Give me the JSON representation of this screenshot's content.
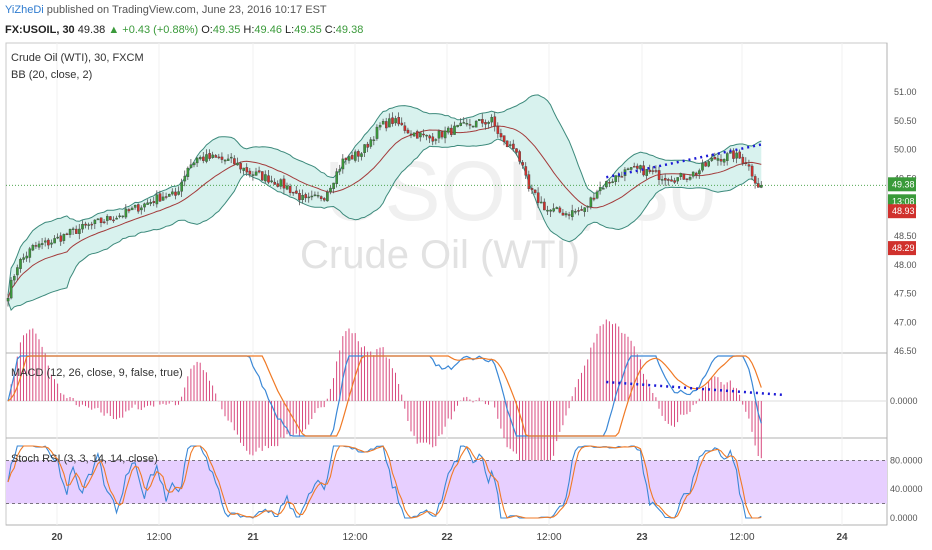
{
  "header": {
    "author": "YiZheDi",
    "published": " published on TradingView.com, June 23, 2016 10:17 EST",
    "symbol": "FX:USOIL, 30",
    "last": "49.38",
    "change": "+0.43 (+0.88%)",
    "open_label": "O:",
    "open": "49.35",
    "high_label": "H:",
    "high": "49.46",
    "low_label": "L:",
    "low": "49.35",
    "close_label": "C:",
    "close": "49.38"
  },
  "main": {
    "title": "Crude Oil (WTI), 30, FXCM",
    "indicator": "BB (20, close, 2)",
    "watermark_symbol": "USOIL, 30",
    "watermark_name": "Crude Oil (WTI)"
  },
  "colors": {
    "up": "#3a9a3a",
    "down": "#d0312d",
    "bb_fill": "#d8f2ee",
    "bb_line": "#3d8a7c",
    "basis": "#a33b3b",
    "macd": "#3b88d6",
    "signal": "#f07a26",
    "hist": "#d84a7e",
    "stoch_k": "#3b88d6",
    "stoch_d": "#f07a26",
    "stoch_band": "#e7cfff",
    "trendline": "#1c1ad6"
  },
  "price_badges": {
    "last": "49.38",
    "countdown": "13:08",
    "level_1": "48.93",
    "level_2": "48.29"
  },
  "chart_data": [
    {
      "type": "candlestick",
      "title": "Crude Oil (WTI), 30, FXCM",
      "ylim": [
        46.3,
        51.2
      ],
      "yticks": [
        "51.00",
        "50.50",
        "50.00",
        "49.50",
        "49.00",
        "48.50",
        "48.00",
        "47.50",
        "47.00",
        "46.50"
      ],
      "xticks": [
        "20",
        "12:00",
        "21",
        "12:00",
        "22",
        "12:00",
        "23",
        "12:00",
        "24"
      ],
      "bars_per_day": 48,
      "anchors": [
        [
          0,
          47.5
        ],
        [
          3,
          48.0
        ],
        [
          8,
          48.3
        ],
        [
          14,
          48.4
        ],
        [
          22,
          48.6
        ],
        [
          30,
          48.75
        ],
        [
          38,
          48.9
        ],
        [
          46,
          49.1
        ],
        [
          50,
          49.2
        ],
        [
          54,
          49.2
        ],
        [
          58,
          49.7
        ],
        [
          61,
          49.85
        ],
        [
          66,
          49.85
        ],
        [
          72,
          49.8
        ],
        [
          78,
          49.6
        ],
        [
          84,
          49.5
        ],
        [
          90,
          49.35
        ],
        [
          96,
          49.1
        ],
        [
          102,
          49.2
        ],
        [
          108,
          49.8
        ],
        [
          114,
          49.95
        ],
        [
          120,
          50.4
        ],
        [
          124,
          50.5
        ],
        [
          130,
          50.3
        ],
        [
          136,
          50.2
        ],
        [
          144,
          50.35
        ],
        [
          150,
          50.45
        ],
        [
          156,
          50.5
        ],
        [
          160,
          50.1
        ],
        [
          164,
          50.0
        ],
        [
          168,
          49.3
        ],
        [
          174,
          48.95
        ],
        [
          180,
          48.9
        ],
        [
          186,
          48.95
        ],
        [
          190,
          49.3
        ],
        [
          198,
          49.6
        ],
        [
          204,
          49.65
        ],
        [
          210,
          49.55
        ],
        [
          216,
          49.5
        ],
        [
          222,
          49.6
        ],
        [
          228,
          49.85
        ],
        [
          234,
          49.9
        ],
        [
          238,
          49.8
        ],
        [
          242,
          49.38
        ]
      ],
      "bb": {
        "length": 20,
        "source": "close",
        "mult": 2
      },
      "trendline": [
        [
          193,
          49.52
        ],
        [
          244,
          50.1
        ]
      ]
    },
    {
      "type": "line",
      "title": "MACD (12, 26, close, 9, false, true)",
      "yticks": [
        "0.0000"
      ],
      "series": [
        {
          "name": "MACD"
        },
        {
          "name": "Signal"
        },
        {
          "name": "Histogram"
        }
      ],
      "trendline_start_index": 193
    },
    {
      "type": "line",
      "title": "Stoch RSI (3, 3, 14, 14, close)",
      "ylim": [
        0,
        100
      ],
      "yticks": [
        "80.0000",
        "40.0000",
        "0.0000"
      ],
      "bands": [
        20,
        80
      ],
      "series": [
        {
          "name": "K"
        },
        {
          "name": "D"
        }
      ]
    }
  ]
}
